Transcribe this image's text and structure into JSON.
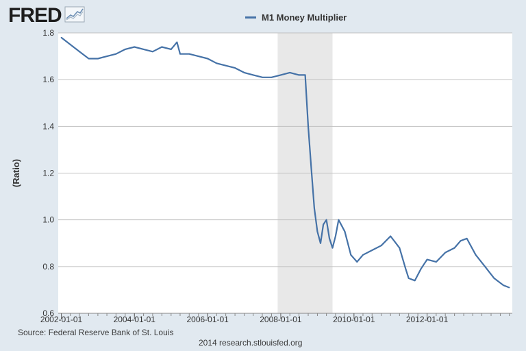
{
  "logo": {
    "text": "FRED",
    "icon": "trend-graph-icon"
  },
  "colors": {
    "background": "#e1e9f0",
    "plot_background": "#ffffff",
    "series": "#4572a7",
    "recession": "#e8e8e8",
    "grid": "#c0c0c0",
    "text": "#333333"
  },
  "footer": {
    "source": "Source: Federal Reserve Bank of St. Louis",
    "credit": "2014 research.stlouisfed.org"
  },
  "chart_data": {
    "type": "line",
    "ylabel": "(Ratio)",
    "xlabel": "",
    "xlim": [
      "2001-12-01",
      "2014-05-01"
    ],
    "ylim": [
      0.6,
      1.8
    ],
    "yticks": [
      0.6,
      0.8,
      1.0,
      1.2,
      1.4,
      1.6,
      1.8
    ],
    "ytick_labels": [
      "0.6",
      "0.8",
      "1.0",
      "1.2",
      "1.4",
      "1.6",
      "1.8"
    ],
    "xticks": [
      "2002-01-01",
      "2004-01-01",
      "2006-01-01",
      "2008-01-01",
      "2010-01-01",
      "2012-01-01"
    ],
    "grid": true,
    "legend_position": "top-center",
    "recession": {
      "start": "2007-12-01",
      "end": "2009-06-01"
    },
    "series": [
      {
        "name": "M1 Money Multiplier",
        "color": "#4572a7",
        "x": [
          "2002-01-01",
          "2002-04-01",
          "2002-07-01",
          "2002-10-01",
          "2003-01-01",
          "2003-04-01",
          "2003-07-01",
          "2003-10-01",
          "2004-01-01",
          "2004-04-01",
          "2004-07-01",
          "2004-10-01",
          "2005-01-01",
          "2005-03-01",
          "2005-04-01",
          "2005-07-01",
          "2005-10-01",
          "2006-01-01",
          "2006-04-01",
          "2006-07-01",
          "2006-10-01",
          "2007-01-01",
          "2007-04-01",
          "2007-07-01",
          "2007-10-01",
          "2008-01-01",
          "2008-04-01",
          "2008-07-01",
          "2008-09-01",
          "2008-10-01",
          "2008-11-01",
          "2008-12-01",
          "2009-01-01",
          "2009-02-01",
          "2009-03-01",
          "2009-04-01",
          "2009-05-01",
          "2009-06-01",
          "2009-07-01",
          "2009-08-01",
          "2009-10-01",
          "2009-12-01",
          "2010-02-01",
          "2010-04-01",
          "2010-07-01",
          "2010-10-01",
          "2011-01-01",
          "2011-04-01",
          "2011-06-01",
          "2011-07-01",
          "2011-09-01",
          "2011-11-01",
          "2012-01-01",
          "2012-04-01",
          "2012-07-01",
          "2012-10-01",
          "2012-12-01",
          "2013-02-01",
          "2013-05-01",
          "2013-08-01",
          "2013-11-01",
          "2014-02-01",
          "2014-04-01"
        ],
        "y": [
          1.78,
          1.75,
          1.72,
          1.69,
          1.69,
          1.7,
          1.71,
          1.73,
          1.74,
          1.73,
          1.72,
          1.74,
          1.73,
          1.76,
          1.71,
          1.71,
          1.7,
          1.69,
          1.67,
          1.66,
          1.65,
          1.63,
          1.62,
          1.61,
          1.61,
          1.62,
          1.63,
          1.62,
          1.62,
          1.4,
          1.22,
          1.05,
          0.95,
          0.9,
          0.98,
          1.0,
          0.92,
          0.88,
          0.93,
          1.0,
          0.95,
          0.85,
          0.82,
          0.85,
          0.87,
          0.89,
          0.93,
          0.88,
          0.79,
          0.75,
          0.74,
          0.79,
          0.83,
          0.82,
          0.86,
          0.88,
          0.91,
          0.92,
          0.85,
          0.8,
          0.75,
          0.72,
          0.71
        ]
      }
    ]
  }
}
